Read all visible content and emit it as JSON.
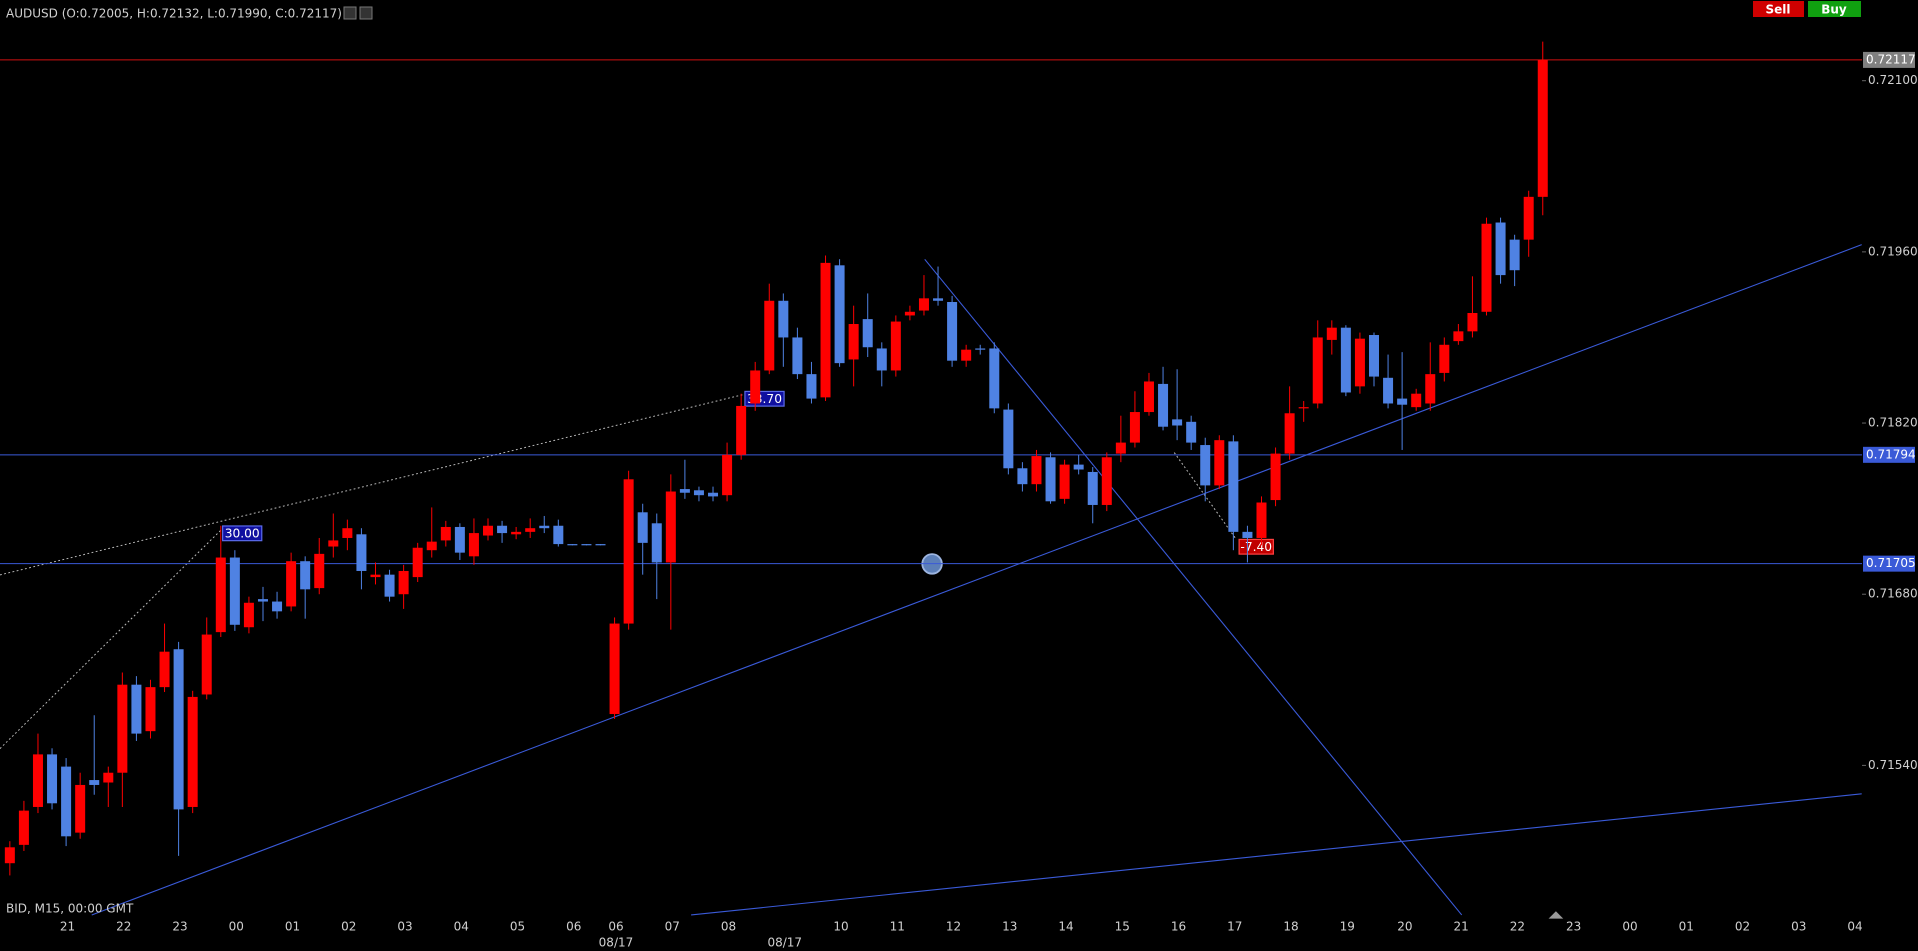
{
  "header": {
    "symbol_info": "AUDUSD (O:0.72005, H:0.72132, L:0.71990, C:0.72117)",
    "sell": "Sell",
    "buy": "Buy",
    "footer": "BID, M15, 00:00 GMT"
  },
  "chart_data": {
    "type": "candlestick",
    "open": [
      0.7146,
      0.71475,
      0.71506,
      0.71549,
      0.71539,
      0.71485,
      0.71528,
      0.71526,
      0.71534,
      0.71606,
      0.71568,
      0.71604,
      0.71635,
      0.71506,
      0.71598,
      0.71649,
      0.7171,
      0.71653,
      0.71676,
      0.71674,
      0.7167,
      0.71707,
      0.71685,
      0.71719,
      0.71726,
      0.71729,
      0.71694,
      0.71696,
      0.7168,
      0.71694,
      0.71716,
      0.71724,
      0.71735,
      0.71711,
      0.71728,
      0.71736,
      0.71729,
      0.71731,
      0.71736,
      0.71736,
      0.71721,
      0.71721,
      0.71721,
      0.71582,
      0.71656,
      0.71747,
      0.71738,
      0.71706,
      0.71766,
      0.71765,
      0.71763,
      0.71761,
      0.71794,
      0.71836,
      0.71863,
      0.7192,
      0.7189,
      0.7186,
      0.71841,
      0.71949,
      0.71872,
      0.71905,
      0.71881,
      0.71863,
      0.71908,
      0.71912,
      0.71922,
      0.71919,
      0.71871,
      0.71881,
      0.71881,
      0.71831,
      0.71783,
      0.7177,
      0.71792,
      0.71758,
      0.71786,
      0.7178,
      0.71753,
      0.71795,
      0.71804,
      0.71829,
      0.71852,
      0.71823,
      0.71821,
      0.71802,
      0.71769,
      0.71805,
      0.71731,
      0.71726,
      0.71757,
      0.71795,
      0.71832,
      0.71836,
      0.71888,
      0.71898,
      0.7185,
      0.71892,
      0.71857,
      0.7184,
      0.71833,
      0.71836,
      0.71861,
      0.71887,
      0.71895,
      0.71911,
      0.71984,
      0.7197,
      0.7197,
      0.72005
    ],
    "high": [
      0.71478,
      0.71511,
      0.71566,
      0.71554,
      0.71546,
      0.71534,
      0.71581,
      0.71539,
      0.71616,
      0.71613,
      0.7161,
      0.71656,
      0.71641,
      0.71601,
      0.71661,
      0.71736,
      0.71716,
      0.71678,
      0.71686,
      0.71682,
      0.71714,
      0.71711,
      0.71726,
      0.71746,
      0.71741,
      0.71734,
      0.71706,
      0.717,
      0.71704,
      0.71722,
      0.71751,
      0.7174,
      0.71738,
      0.71742,
      0.71742,
      0.7174,
      0.71735,
      0.71742,
      0.71744,
      0.71741,
      0.71721,
      0.71721,
      0.71721,
      0.71661,
      0.71781,
      0.71754,
      0.71746,
      0.71778,
      0.7179,
      0.71768,
      0.71768,
      0.71804,
      0.71844,
      0.7187,
      0.71934,
      0.71926,
      0.71898,
      0.7187,
      0.71957,
      0.71954,
      0.71916,
      0.71926,
      0.71886,
      0.71908,
      0.71916,
      0.71941,
      0.71948,
      0.71924,
      0.71884,
      0.71884,
      0.71886,
      0.71836,
      0.71788,
      0.71798,
      0.71796,
      0.7179,
      0.71794,
      0.71784,
      0.71796,
      0.71826,
      0.71846,
      0.71861,
      0.71866,
      0.71864,
      0.71826,
      0.71808,
      0.7181,
      0.7181,
      0.71736,
      0.7176,
      0.718,
      0.7185,
      0.71838,
      0.71904,
      0.71904,
      0.719,
      0.71894,
      0.71894,
      0.71876,
      0.71878,
      0.71848,
      0.71886,
      0.7189,
      0.71901,
      0.7194,
      0.71988,
      0.71988,
      0.71974,
      0.7201,
      0.72132
    ],
    "low": [
      0.7145,
      0.7147,
      0.71501,
      0.71504,
      0.71474,
      0.7148,
      0.71516,
      0.71506,
      0.71506,
      0.7156,
      0.71562,
      0.716,
      0.71466,
      0.71501,
      0.71594,
      0.71645,
      0.7165,
      0.71648,
      0.71658,
      0.7166,
      0.71666,
      0.7166,
      0.7168,
      0.7171,
      0.71716,
      0.71684,
      0.71688,
      0.71674,
      0.71668,
      0.7169,
      0.7171,
      0.71719,
      0.71708,
      0.71704,
      0.71724,
      0.71722,
      0.71725,
      0.71726,
      0.7173,
      0.71719,
      0.7172,
      0.7172,
      0.7172,
      0.71578,
      0.71651,
      0.71696,
      0.71676,
      0.71651,
      0.71758,
      0.71756,
      0.71756,
      0.71756,
      0.7179,
      0.7183,
      0.7186,
      0.71866,
      0.71856,
      0.71836,
      0.71838,
      0.71866,
      0.7185,
      0.71874,
      0.7185,
      0.71858,
      0.71904,
      0.71908,
      0.71916,
      0.71866,
      0.71866,
      0.71876,
      0.71828,
      0.71778,
      0.71764,
      0.71764,
      0.71754,
      0.71754,
      0.71778,
      0.71738,
      0.71748,
      0.71788,
      0.718,
      0.71826,
      0.71814,
      0.71806,
      0.71798,
      0.71756,
      0.71766,
      0.71716,
      0.71706,
      0.7172,
      0.71752,
      0.7179,
      0.71821,
      0.71832,
      0.71876,
      0.71842,
      0.71844,
      0.7185,
      0.71832,
      0.71798,
      0.7183,
      0.7183,
      0.71854,
      0.71884,
      0.7189,
      0.71908,
      0.71934,
      0.71932,
      0.71956,
      0.7199
    ],
    "close": [
      0.71473,
      0.71503,
      0.71549,
      0.71509,
      0.71482,
      0.71524,
      0.71524,
      0.71534,
      0.71606,
      0.71566,
      0.71604,
      0.71633,
      0.71504,
      0.71596,
      0.71647,
      0.7171,
      0.71655,
      0.71673,
      0.71674,
      0.71666,
      0.71707,
      0.71684,
      0.71713,
      0.71724,
      0.71734,
      0.71699,
      0.71696,
      0.71678,
      0.71699,
      0.71718,
      0.71723,
      0.71735,
      0.71714,
      0.7173,
      0.71736,
      0.7173,
      0.71731,
      0.71734,
      0.71734,
      0.71721,
      0.7172,
      0.7172,
      0.7172,
      0.71656,
      0.71774,
      0.71722,
      0.71706,
      0.71764,
      0.71763,
      0.71761,
      0.7176,
      0.71794,
      0.71834,
      0.71863,
      0.7192,
      0.7189,
      0.7186,
      0.7184,
      0.71951,
      0.71869,
      0.71901,
      0.71882,
      0.71863,
      0.71903,
      0.71911,
      0.71922,
      0.7192,
      0.71871,
      0.7188,
      0.7188,
      0.71832,
      0.71783,
      0.7177,
      0.71793,
      0.71756,
      0.71786,
      0.71782,
      0.71753,
      0.71792,
      0.71804,
      0.71829,
      0.71854,
      0.71817,
      0.71818,
      0.71804,
      0.71769,
      0.71806,
      0.71731,
      0.71726,
      0.71755,
      0.71795,
      0.71828,
      0.71833,
      0.7189,
      0.71898,
      0.71845,
      0.71889,
      0.71858,
      0.71836,
      0.71835,
      0.71844,
      0.7186,
      0.71884,
      0.71895,
      0.7191,
      0.71983,
      0.71941,
      0.71945,
      0.72005,
      0.72117
    ],
    "up_color": "#ff0000",
    "down_color": "#4f82e3",
    "xlim": [
      -0.7,
      131.7
    ],
    "ylim": [
      0.71416,
      0.72166
    ],
    "yticks": [
      {
        "value": 0.721,
        "label": "0.72100"
      },
      {
        "value": 0.7196,
        "label": "0.71960"
      },
      {
        "value": 0.7182,
        "label": "0.71820"
      },
      {
        "value": 0.7168,
        "label": "0.71680"
      },
      {
        "value": 0.7154,
        "label": "0.71540"
      }
    ],
    "xticks": [
      {
        "value": 4.1,
        "label": "21"
      },
      {
        "value": 8.1,
        "label": "22"
      },
      {
        "value": 12.1,
        "label": "23"
      },
      {
        "value": 16.1,
        "label": "00"
      },
      {
        "value": 20.1,
        "label": "01"
      },
      {
        "value": 24.1,
        "label": "02"
      },
      {
        "value": 28.1,
        "label": "03"
      },
      {
        "value": 32.1,
        "label": "04"
      },
      {
        "value": 36.1,
        "label": "05"
      },
      {
        "value": 40.1,
        "label": "06"
      },
      {
        "value": 43.1,
        "label": "06"
      },
      {
        "value": 47.1,
        "label": "07"
      },
      {
        "value": 51.1,
        "label": "08"
      },
      {
        "value": 59.1,
        "label": "10"
      },
      {
        "value": 63.1,
        "label": "11"
      },
      {
        "value": 67.1,
        "label": "12"
      },
      {
        "value": 71.1,
        "label": "13"
      },
      {
        "value": 75.1,
        "label": "14"
      },
      {
        "value": 79.1,
        "label": "15"
      },
      {
        "value": 83.1,
        "label": "16"
      },
      {
        "value": 87.1,
        "label": "17"
      },
      {
        "value": 91.1,
        "label": "18"
      },
      {
        "value": 95.1,
        "label": "19"
      },
      {
        "value": 99.2,
        "label": "20"
      },
      {
        "value": 103.2,
        "label": "21"
      },
      {
        "value": 107.2,
        "label": "22"
      },
      {
        "value": 111.2,
        "label": "23"
      },
      {
        "value": 115.2,
        "label": "00"
      },
      {
        "value": 119.2,
        "label": "01"
      },
      {
        "value": 123.2,
        "label": "02"
      },
      {
        "value": 127.2,
        "label": "03"
      },
      {
        "value": 131.2,
        "label": "04"
      }
    ],
    "date_labels": [
      {
        "value": 43.1,
        "label": "08/17"
      },
      {
        "value": 55.1,
        "label": "08/17"
      }
    ],
    "lines": [
      {
        "value": 0.72117,
        "label": "0.72117",
        "color": "#d01010",
        "label_color": "#808080"
      },
      {
        "value": 0.71794,
        "label": "0.71794",
        "color": "#3a5ad8",
        "label_color": "#3a5ad8"
      },
      {
        "value": 0.71705,
        "label": "0.71705",
        "color": "#3a5ad8",
        "label_color": "#3a5ad8"
      }
    ],
    "annotations": [
      "30.00",
      "33.70",
      "-7.40"
    ]
  }
}
